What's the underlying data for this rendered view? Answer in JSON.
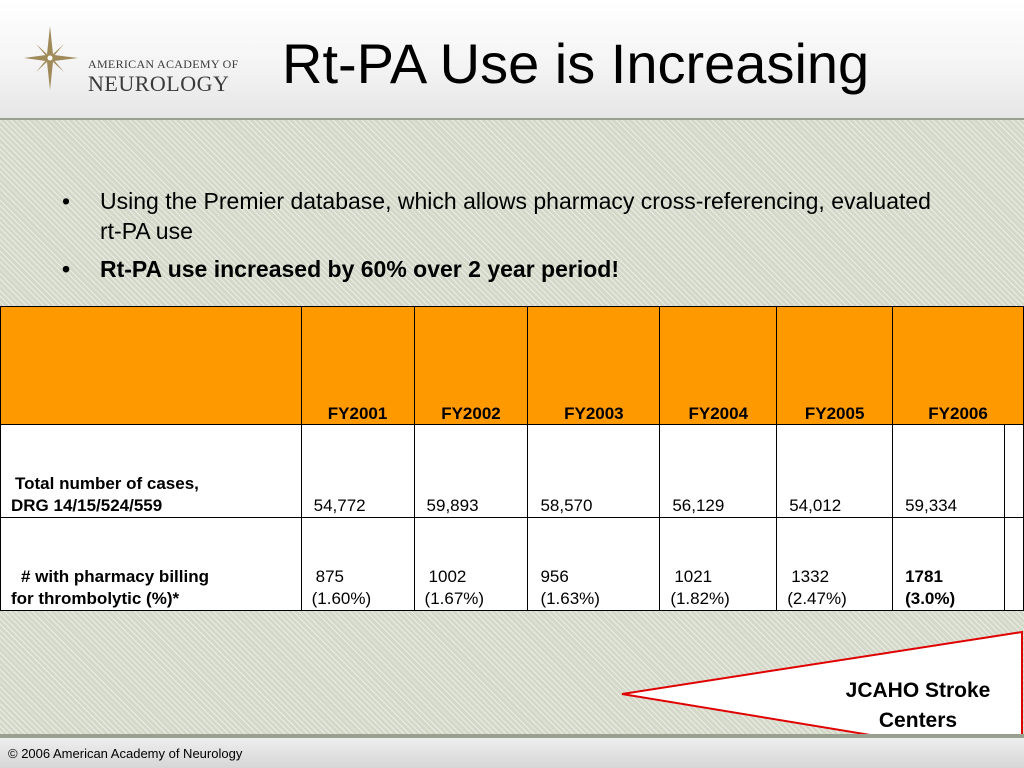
{
  "logo": {
    "line1": "AMERICAN ACADEMY OF",
    "line2": "NEUROLOGY"
  },
  "title": "Rt-PA Use is Increasing",
  "bullets": [
    {
      "text": "Using the Premier database, which allows pharmacy cross-referencing, evaluated rt-PA use",
      "bold": false
    },
    {
      "text": "Rt-PA use increased by 60% over 2 year period!",
      "bold": true
    }
  ],
  "bullet_glyph": "•",
  "table": {
    "columns": [
      "FY2001",
      "FY2002",
      "FY2003",
      "FY2004",
      "FY2005",
      "FY2006"
    ],
    "rows": [
      {
        "label_line1": "Total number of cases,",
        "label_line2": "DRG 14/15/524/559",
        "values": [
          "54,772",
          "59,893",
          "58,570",
          "56,129",
          "54,012",
          "59,334"
        ]
      },
      {
        "label_line1": "# with pharmacy billing",
        "label_line2": "for thrombolytic (%)*",
        "values": [
          {
            "count": "875",
            "pct": "(1.60%)"
          },
          {
            "count": "1002",
            "pct": "(1.67%)"
          },
          {
            "count": "956",
            "pct": "(1.63%)"
          },
          {
            "count": "1021",
            "pct": "(1.82%)"
          },
          {
            "count": "1332",
            "pct": "(2.47%)"
          },
          {
            "count": "1781",
            "pct": "(3.0%)"
          }
        ]
      }
    ]
  },
  "annotation": {
    "line1": "JCAHO Stroke",
    "line2": "Centers",
    "color": "#e00000"
  },
  "footer": {
    "copyright": "© 2006 American Academy of Neurology"
  },
  "colors": {
    "header_fill": "#ff9900",
    "content_bg": "#d3d8c8"
  }
}
